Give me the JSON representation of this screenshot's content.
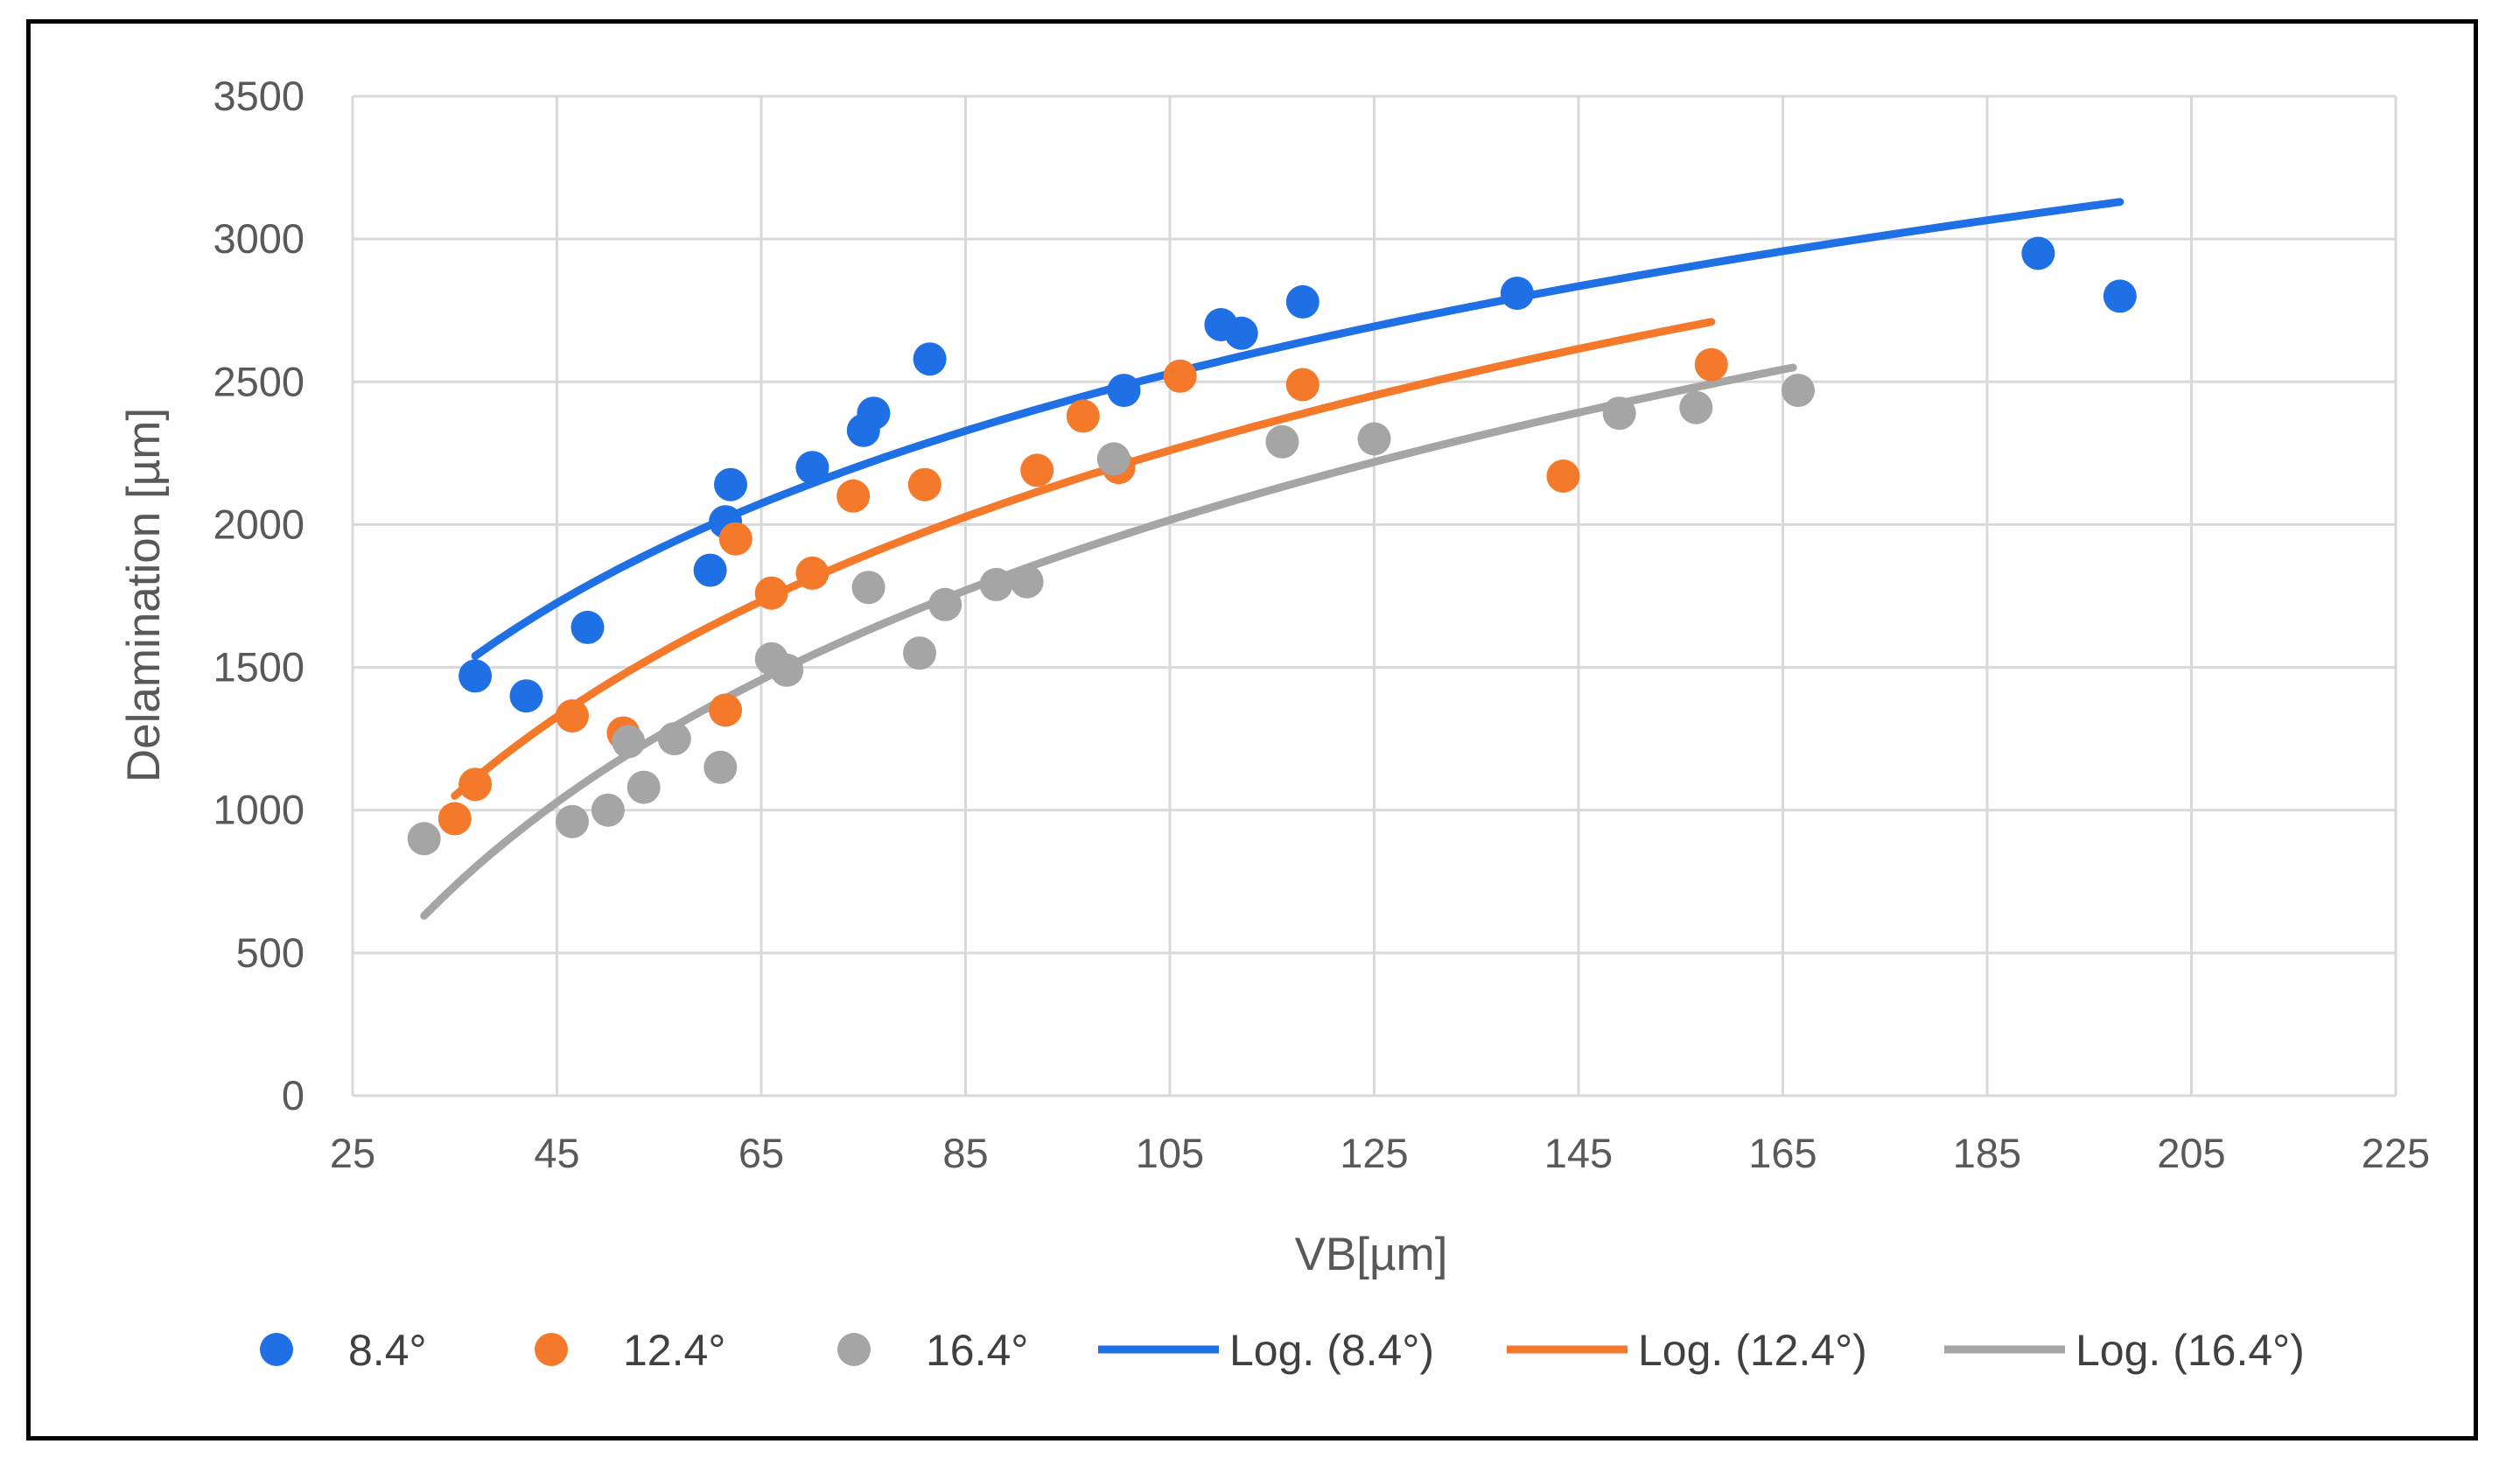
{
  "chart_data": {
    "type": "scatter",
    "title": "",
    "xlabel": "VB[µm]",
    "ylabel": "Delamination [µm]",
    "xlim": [
      25,
      225
    ],
    "ylim": [
      0,
      3500
    ],
    "xticks": [
      25,
      45,
      65,
      85,
      105,
      125,
      145,
      165,
      185,
      205,
      225
    ],
    "yticks": [
      0,
      500,
      1000,
      1500,
      2000,
      2500,
      3000,
      3500
    ],
    "x_tick_labels": [
      "25",
      "45",
      "65",
      "85",
      "105",
      "125",
      "145",
      "165",
      "185",
      "205",
      "225"
    ],
    "y_tick_labels": [
      "0",
      "500",
      "1000",
      "1500",
      "2000",
      "2500",
      "3000",
      "3500"
    ],
    "grid": true,
    "legend_position": "bottom",
    "series": [
      {
        "name": "8.4°",
        "color": "#1F6FE5",
        "points": [
          [
            37,
            1470
          ],
          [
            42,
            1400
          ],
          [
            48,
            1640
          ],
          [
            60,
            1840
          ],
          [
            61.5,
            2010
          ],
          [
            62,
            2140
          ],
          [
            70,
            2200
          ],
          [
            75,
            2330
          ],
          [
            76,
            2390
          ],
          [
            81.5,
            2580
          ],
          [
            100.5,
            2470
          ],
          [
            110,
            2700
          ],
          [
            112,
            2670
          ],
          [
            118,
            2780
          ],
          [
            139,
            2810
          ],
          [
            190,
            2950
          ],
          [
            198,
            2800
          ]
        ],
        "trend": {
          "label": "Log. (8.4°)",
          "x_range": [
            37,
            198
          ],
          "y_at_start": 1540,
          "y_at_end": 3130
        }
      },
      {
        "name": "12.4°",
        "color": "#F5792A",
        "points": [
          [
            35,
            970
          ],
          [
            37,
            1090
          ],
          [
            46.5,
            1330
          ],
          [
            51.5,
            1270
          ],
          [
            61.5,
            1350
          ],
          [
            62.5,
            1950
          ],
          [
            66,
            1760
          ],
          [
            70,
            1830
          ],
          [
            74,
            2100
          ],
          [
            81,
            2140
          ],
          [
            92,
            2190
          ],
          [
            96.5,
            2380
          ],
          [
            100,
            2200
          ],
          [
            106,
            2520
          ],
          [
            118,
            2490
          ],
          [
            143.5,
            2170
          ],
          [
            158,
            2560
          ]
        ],
        "trend": {
          "label": "Log. (12.4°)",
          "x_range": [
            35,
            158
          ],
          "y_at_start": 1050,
          "y_at_end": 2710
        }
      },
      {
        "name": "16.4°",
        "color": "#A5A5A5",
        "points": [
          [
            32,
            900
          ],
          [
            46.5,
            960
          ],
          [
            50,
            1000
          ],
          [
            52,
            1240
          ],
          [
            53.5,
            1080
          ],
          [
            56.5,
            1250
          ],
          [
            61,
            1150
          ],
          [
            66,
            1530
          ],
          [
            67.5,
            1490
          ],
          [
            75.5,
            1780
          ],
          [
            80.5,
            1550
          ],
          [
            83,
            1720
          ],
          [
            88,
            1790
          ],
          [
            91,
            1800
          ],
          [
            99.5,
            2230
          ],
          [
            116,
            2290
          ],
          [
            125,
            2300
          ],
          [
            149,
            2390
          ],
          [
            156.5,
            2410
          ],
          [
            166.5,
            2470
          ]
        ],
        "trend": {
          "label": "Log. (16.4°)",
          "x_range": [
            32,
            166
          ],
          "y_at_start": 630,
          "y_at_end": 2550
        }
      }
    ]
  }
}
